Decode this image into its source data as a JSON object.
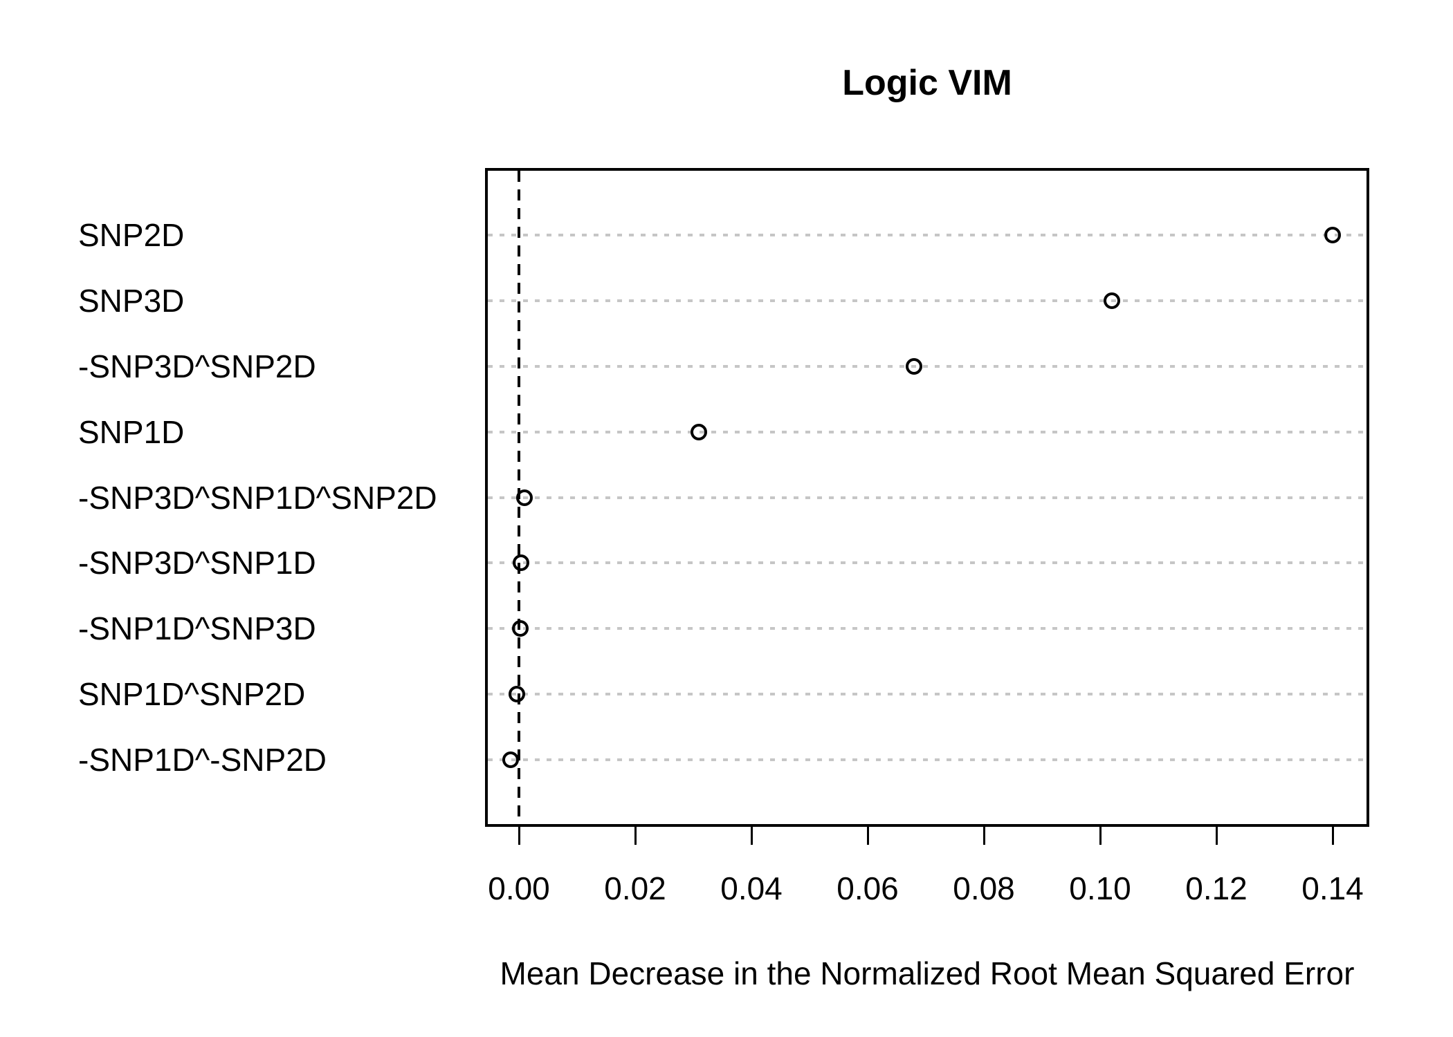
{
  "chart_data": {
    "type": "scatter",
    "subtype": "dotchart",
    "title": "Logic VIM",
    "xlabel": "Mean Decrease in the Normalized Root Mean Squared Error",
    "categories": [
      "SNP2D",
      "SNP3D",
      "-SNP3D^SNP2D",
      "SNP1D",
      "-SNP3D^SNP1D^SNP2D",
      "-SNP3D^SNP1D",
      "-SNP1D^SNP3D",
      "SNP1D^SNP2D",
      "-SNP1D^-SNP2D"
    ],
    "values": [
      0.14,
      0.102,
      0.068,
      0.031,
      0.0009,
      0.0003,
      0.0002,
      -0.0004,
      -0.0014
    ],
    "x_ticks": [
      "0.00",
      "0.02",
      "0.04",
      "0.06",
      "0.08",
      "0.10",
      "0.12",
      "0.14"
    ],
    "xlim": [
      -0.0056,
      0.146
    ],
    "reference_line_x": 0,
    "grid": "dotted horizontal gridlines per category",
    "legend": "none",
    "marker": "open-circle",
    "colors": {
      "background": "#ffffff",
      "text": "#000000",
      "box_border": "#000000",
      "gridline": "#c6c6c6",
      "reference_line": "#000000",
      "marker_stroke": "#000000"
    }
  }
}
